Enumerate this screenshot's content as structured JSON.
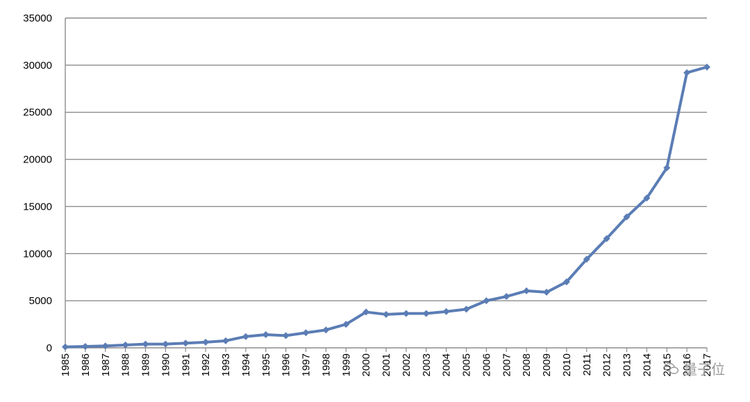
{
  "chart_data": {
    "type": "line",
    "title": "",
    "xlabel": "",
    "ylabel": "",
    "ylim": [
      0,
      35000
    ],
    "yticks": [
      0,
      5000,
      10000,
      15000,
      20000,
      25000,
      30000,
      35000
    ],
    "grid": true,
    "legend": "none",
    "line_color": "#5b7db5",
    "x": [
      "1985",
      "1986",
      "1987",
      "1988",
      "1989",
      "1990",
      "1991",
      "1992",
      "1993",
      "1994",
      "1995",
      "1996",
      "1997",
      "1998",
      "1999",
      "2000",
      "2001",
      "2002",
      "2003",
      "2004",
      "2005",
      "2006",
      "2007",
      "2008",
      "2009",
      "2010",
      "2011",
      "2012",
      "2013",
      "2014",
      "2015",
      "2016",
      "2017"
    ],
    "series": [
      {
        "values": [
          100,
          150,
          200,
          300,
          400,
          400,
          500,
          600,
          750,
          1200,
          1400,
          1300,
          1600,
          1900,
          2500,
          3800,
          3550,
          3650,
          3650,
          3850,
          4100,
          5000,
          5450,
          6050,
          5900,
          7000,
          9400,
          11600,
          13900,
          15900,
          19100,
          29200,
          29800
        ]
      }
    ]
  },
  "watermark": {
    "text": "量子位",
    "icon": "wechat-icon"
  }
}
